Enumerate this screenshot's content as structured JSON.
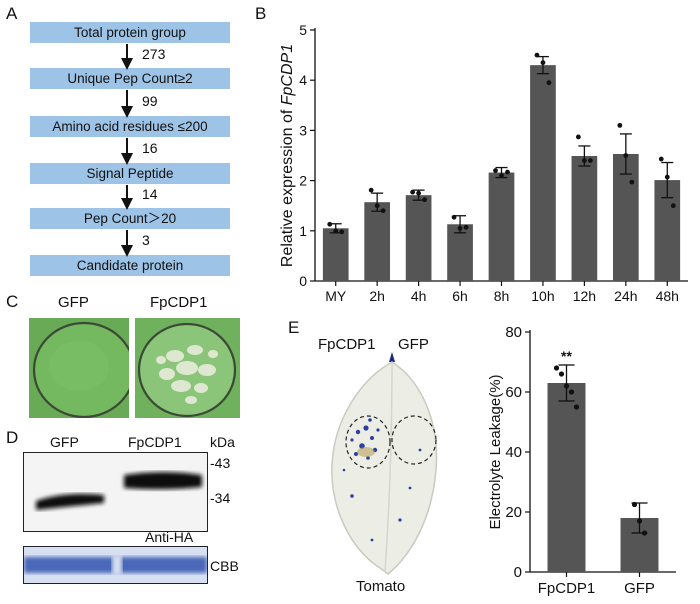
{
  "panel_labels": {
    "a": "A",
    "b": "B",
    "c": "C",
    "d": "D",
    "e": "E"
  },
  "flowchart": {
    "steps": [
      "Total protein group",
      "Unique Pep Count≥2",
      "Amino acid residues ≤200",
      "Signal Peptide",
      "Pep Count＞20",
      "Candidate protein"
    ],
    "counts": [
      "273",
      "99",
      "16",
      "14",
      "3"
    ]
  },
  "panel_c": {
    "left_label": "GFP",
    "right_label": "FpCDP1"
  },
  "panel_d": {
    "left_label": "GFP",
    "right_label": "FpCDP1",
    "unit": "kDa",
    "marker_high": "-43",
    "marker_low": "-34",
    "antibody": "Anti-HA",
    "loading": "CBB"
  },
  "panel_e_leaf": {
    "label_fpcdp1": "FpCDP1",
    "label_gfp": "GFP",
    "host": "Tomato"
  },
  "colors": {
    "flow_box": "#9dc3e6",
    "bar": "#555555",
    "leaf_green": "#6fb15c",
    "blot_blue": "#5a78c0"
  },
  "chart_data": [
    {
      "type": "bar",
      "title": "",
      "ylabel_prefix": "Relative expression of ",
      "ylabel_gene": "FpCDP1",
      "xlabel": "",
      "categories": [
        "MY",
        "2h",
        "4h",
        "6h",
        "8h",
        "10h",
        "12h",
        "24h",
        "48h"
      ],
      "values": [
        1.05,
        1.57,
        1.71,
        1.13,
        2.16,
        4.3,
        2.49,
        2.53,
        2.01
      ],
      "errors": [
        0.09,
        0.18,
        0.1,
        0.17,
        0.1,
        0.17,
        0.2,
        0.4,
        0.35
      ],
      "points": [
        [
          1.13,
          1.0,
          0.98
        ],
        [
          1.81,
          1.5,
          1.4
        ],
        [
          1.77,
          1.75,
          1.62
        ],
        [
          1.27,
          1.05,
          1.07
        ],
        [
          2.2,
          2.1,
          2.17
        ],
        [
          4.5,
          4.35,
          3.95
        ],
        [
          2.87,
          2.4,
          2.4
        ],
        [
          3.1,
          2.5,
          1.97
        ],
        [
          2.43,
          2.07,
          1.5
        ]
      ],
      "ylim": [
        0,
        5
      ],
      "yticks": [
        0,
        1,
        2,
        3,
        4,
        5
      ]
    },
    {
      "type": "bar",
      "title": "",
      "ylabel": "Electrolyte Leakage(%)",
      "xlabel": "",
      "categories": [
        "FpCDP1",
        "GFP"
      ],
      "values": [
        63,
        18
      ],
      "errors": [
        6,
        5
      ],
      "points": [
        [
          68,
          66,
          62,
          60,
          55
        ],
        [
          22.5,
          17,
          13
        ]
      ],
      "significance": [
        "**",
        ""
      ],
      "ylim": [
        0,
        80
      ],
      "yticks": [
        0,
        20,
        40,
        60,
        80
      ]
    }
  ]
}
